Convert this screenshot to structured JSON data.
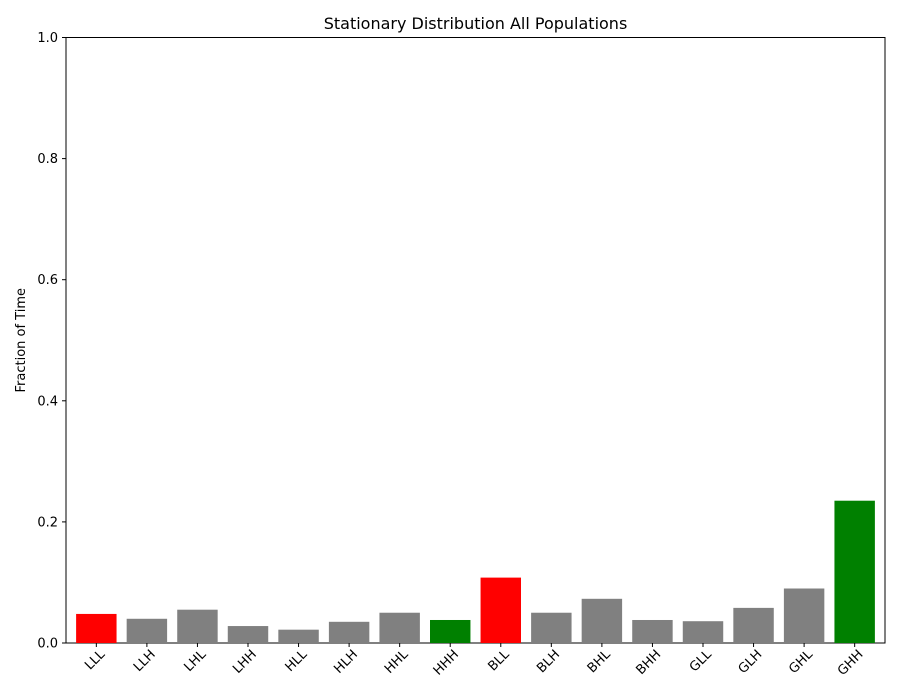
{
  "chart_data": {
    "type": "bar",
    "title": "Stationary Distribution All Populations",
    "xlabel": "",
    "ylabel": "Fraction of Time",
    "ylim": [
      0,
      1.0
    ],
    "yticks": [
      "0.0",
      "0.2",
      "0.4",
      "0.6",
      "0.8",
      "1.0"
    ],
    "categories": [
      "LLL",
      "LLH",
      "LHL",
      "LHH",
      "HLL",
      "HLH",
      "HHL",
      "HHH",
      "BLL",
      "BLH",
      "BHL",
      "BHH",
      "GLL",
      "GLH",
      "GHL",
      "GHH"
    ],
    "values": [
      0.048,
      0.04,
      0.055,
      0.028,
      0.022,
      0.035,
      0.05,
      0.038,
      0.108,
      0.05,
      0.073,
      0.038,
      0.036,
      0.058,
      0.09,
      0.235
    ],
    "bar_colors": [
      "#ff0000",
      "#808080",
      "#808080",
      "#808080",
      "#808080",
      "#808080",
      "#808080",
      "#008000",
      "#ff0000",
      "#808080",
      "#808080",
      "#808080",
      "#808080",
      "#808080",
      "#808080",
      "#008000"
    ],
    "grid": false,
    "xtick_rotation": 45
  }
}
